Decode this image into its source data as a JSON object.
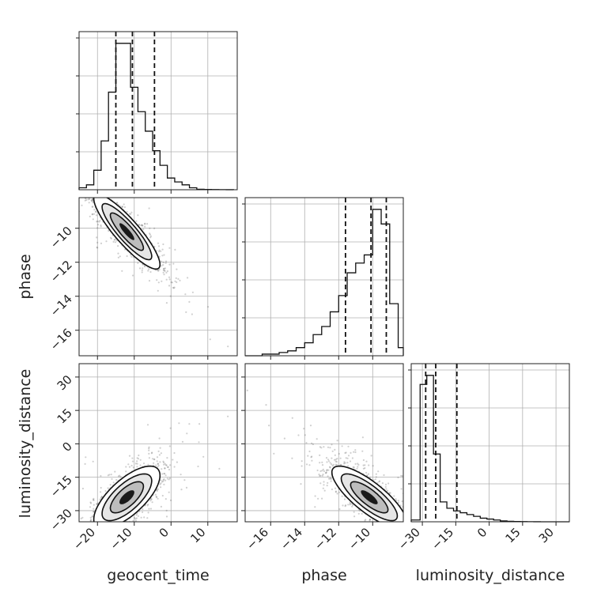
{
  "chart_data": {
    "type": "corner",
    "parameters": [
      "geocent_time",
      "phase",
      "luminosity_distance"
    ],
    "axis_labels": {
      "x": [
        "geocent_time",
        "phase",
        "luminosity_distance"
      ],
      "y": [
        "phase",
        "luminosity_distance"
      ]
    },
    "ranges": {
      "geocent_time": [
        -25,
        18
      ],
      "phase": [
        -17.5,
        -8.2
      ],
      "luminosity_distance": [
        -35,
        36
      ]
    },
    "ticks": {
      "geocent_time": {
        "values": [
          -20,
          -10,
          0,
          10
        ],
        "labels": [
          "−20",
          "−10",
          "0",
          "10"
        ]
      },
      "phase": {
        "values": [
          -16,
          -14,
          -12,
          -10
        ],
        "labels": [
          "−16",
          "−14",
          "−12",
          "−10"
        ]
      },
      "luminosity_distance": {
        "values": [
          -30,
          -15,
          0,
          15,
          30
        ],
        "labels": [
          "−30",
          "−15",
          "0",
          "15",
          "30"
        ]
      }
    },
    "quantiles": {
      "geocent_time": [
        -15,
        -10.5,
        -4.5
      ],
      "phase": [
        -11.6,
        -10.1,
        -9.2
      ],
      "luminosity_distance": [
        -28.5,
        -24,
        -14.5
      ]
    },
    "histograms": {
      "geocent_time": {
        "edges": [
          -25,
          -23,
          -21,
          -19,
          -17,
          -15,
          -13,
          -11,
          -9,
          -7,
          -5,
          -3,
          -1,
          1,
          3,
          5,
          7,
          9,
          11,
          13,
          15,
          17
        ],
        "counts": [
          2,
          5,
          20,
          50,
          100,
          150,
          150,
          105,
          80,
          60,
          40,
          25,
          12,
          8,
          5,
          2,
          0.5,
          0.3,
          0.2,
          0.1,
          0.05
        ]
      },
      "phase": {
        "edges": [
          -17.5,
          -17,
          -16.5,
          -16,
          -15.5,
          -15,
          -14.5,
          -14,
          -13.5,
          -13,
          -12.5,
          -12,
          -11.5,
          -11,
          -10.5,
          -10,
          -9.5,
          -9,
          -8.5,
          -8.2
        ],
        "counts": [
          0,
          0,
          1,
          1,
          2,
          3,
          5,
          8,
          13,
          18,
          27,
          37,
          51,
          57,
          62,
          90,
          81,
          32,
          5
        ]
      },
      "luminosity_distance": {
        "edges": [
          -35,
          -31,
          -28,
          -25,
          -22,
          -19,
          -16,
          -13,
          -10,
          -7,
          -4,
          -1,
          2,
          5,
          8,
          11,
          14,
          17,
          20,
          23,
          26,
          29,
          36
        ],
        "counts": [
          2,
          152,
          162,
          75,
          22,
          15,
          12,
          10,
          8,
          6,
          4,
          3,
          2,
          1,
          0.5,
          0.3,
          0.2,
          0.1,
          0.05,
          0.02,
          0,
          0
        ]
      }
    },
    "contour_levels": [
      "0.5",
      "1.0",
      "1.5",
      "2.0 sigma"
    ],
    "panels": [
      {
        "row": 0,
        "col": 0,
        "kind": "histogram",
        "param": "geocent_time"
      },
      {
        "row": 1,
        "col": 0,
        "kind": "2d",
        "x": "geocent_time",
        "y": "phase",
        "mean": [
          -12,
          -10.2
        ],
        "sd": [
          4.5,
          1.1
        ],
        "rho": -0.88
      },
      {
        "row": 1,
        "col": 1,
        "kind": "histogram",
        "param": "phase"
      },
      {
        "row": 2,
        "col": 0,
        "kind": "2d",
        "x": "geocent_time",
        "y": "luminosity_distance",
        "mean": [
          -12,
          -24
        ],
        "sd": [
          4.5,
          7
        ],
        "rho": 0.7
      },
      {
        "row": 2,
        "col": 1,
        "kind": "2d",
        "x": "phase",
        "y": "luminosity_distance",
        "mean": [
          -10.2,
          -24
        ],
        "sd": [
          1.1,
          7
        ],
        "rho": -0.8
      },
      {
        "row": 2,
        "col": 2,
        "kind": "histogram",
        "param": "luminosity_distance"
      }
    ]
  }
}
